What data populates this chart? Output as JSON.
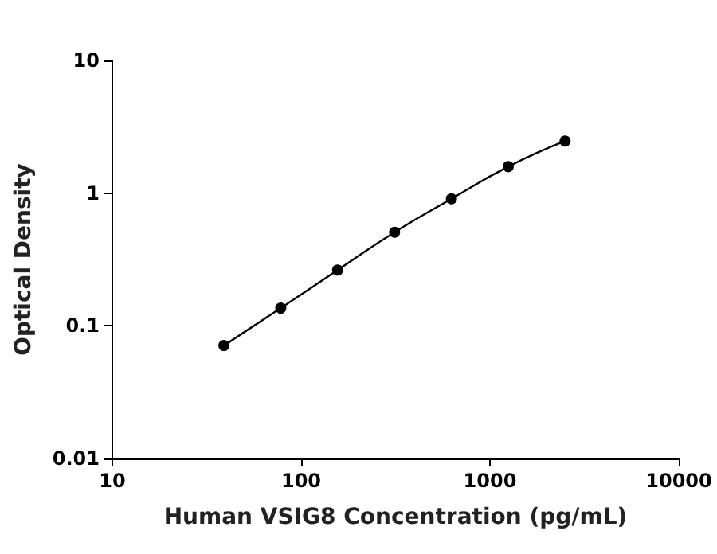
{
  "chart_data": {
    "type": "line",
    "xlabel": "Human VSIG8 Concentration (pg/mL)",
    "ylabel": "Optical Density",
    "log": "xy",
    "x": [
      39,
      78,
      156,
      312.5,
      625,
      1250,
      2500
    ],
    "series": [
      {
        "color": "#000000",
        "values": [
          0.071,
          0.136,
          0.263,
          0.508,
          0.906,
          1.585,
          2.47
        ]
      }
    ],
    "xlim": [
      10,
      10000
    ],
    "xticks": [
      10,
      100,
      1000,
      10000
    ],
    "ylim": [
      0.01,
      10
    ],
    "yticks": [
      0.01,
      0.1,
      1,
      10
    ],
    "grid": false,
    "marker": "circle",
    "line_style": "solid"
  }
}
